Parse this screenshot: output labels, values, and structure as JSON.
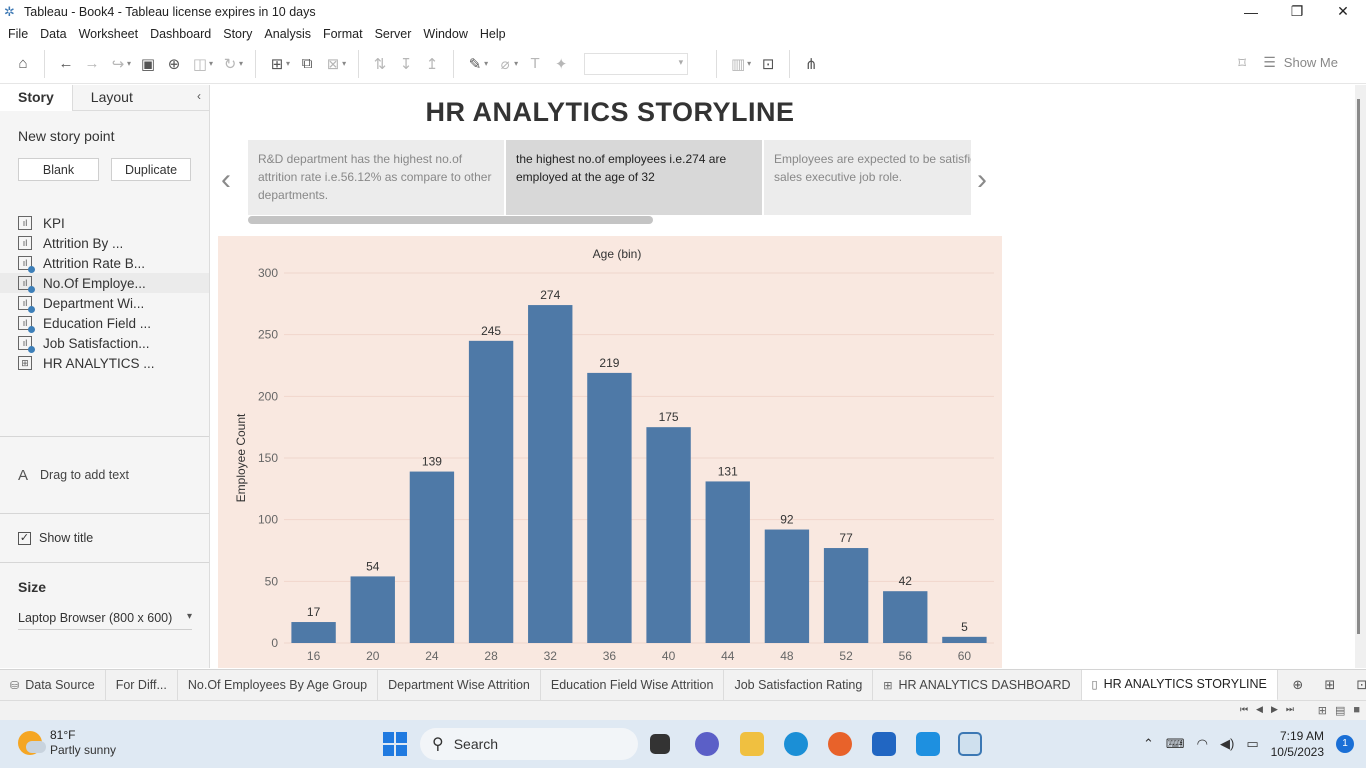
{
  "window": {
    "title": "Tableau - Book4 - Tableau license expires in 10 days"
  },
  "menu": [
    "File",
    "Data",
    "Worksheet",
    "Dashboard",
    "Story",
    "Analysis",
    "Format",
    "Server",
    "Window",
    "Help"
  ],
  "toolbar": {
    "show_me": "Show Me"
  },
  "left_pane": {
    "tabs": [
      "Story",
      "Layout"
    ],
    "new_story_point": "New story point",
    "blank": "Blank",
    "duplicate": "Duplicate",
    "sheets": [
      {
        "label": "KPI",
        "type": "sheet",
        "used": false
      },
      {
        "label": "Attrition By ...",
        "type": "sheet",
        "used": false
      },
      {
        "label": "Attrition Rate B...",
        "type": "sheet",
        "used": true
      },
      {
        "label": "No.Of Employe...",
        "type": "sheet",
        "used": true
      },
      {
        "label": "Department Wi...",
        "type": "sheet",
        "used": true
      },
      {
        "label": "Education Field ...",
        "type": "sheet",
        "used": true
      },
      {
        "label": "Job Satisfaction...",
        "type": "sheet",
        "used": true
      },
      {
        "label": "HR ANALYTICS ...",
        "type": "dashboard",
        "used": false
      }
    ],
    "drag_text": "Drag to add text",
    "show_title": "Show title",
    "size_label": "Size",
    "size_value": "Laptop Browser (800 x 600)"
  },
  "story": {
    "title": "HR ANALYTICS STORYLINE",
    "points": [
      "R&D department has the highest no.of attrition rate i.e.56.12% as compare to other departments.",
      "the highest no.of employees i.e.274 are employed at the age of 32",
      "Employees are expected to be satisfied in sales executive job role."
    ],
    "selected_point": 1
  },
  "chart_data": {
    "type": "bar",
    "title": "Age (bin)",
    "xlabel": "Age (bin)",
    "ylabel": "Employee Count",
    "categories": [
      "16",
      "20",
      "24",
      "28",
      "32",
      "36",
      "40",
      "44",
      "48",
      "52",
      "56",
      "60"
    ],
    "values": [
      17,
      54,
      139,
      245,
      274,
      219,
      175,
      131,
      92,
      77,
      42,
      5
    ],
    "ylim": [
      0,
      300
    ],
    "yticks": [
      0,
      50,
      100,
      150,
      200,
      250,
      300
    ],
    "grid": true,
    "bar_color": "#4e79a7",
    "background": "#f9e8e0"
  },
  "sheet_tabs": [
    {
      "label": "Data Source",
      "icon": "database-icon",
      "active": false
    },
    {
      "label": "For Diff...",
      "icon": "",
      "active": false
    },
    {
      "label": "No.Of Employees By Age Group",
      "icon": "",
      "active": false
    },
    {
      "label": "Department Wise Attrition",
      "icon": "",
      "active": false
    },
    {
      "label": "Education Field Wise Attrition",
      "icon": "",
      "active": false
    },
    {
      "label": "Job Satisfaction Rating",
      "icon": "",
      "active": false
    },
    {
      "label": "HR ANALYTICS DASHBOARD",
      "icon": "dashboard-icon",
      "active": false
    },
    {
      "label": "HR ANALYTICS STORYLINE",
      "icon": "story-icon",
      "active": true
    }
  ],
  "taskbar": {
    "temperature": "81°F",
    "weather": "Partly sunny",
    "search": "Search",
    "time": "7:19 AM",
    "date": "10/5/2023",
    "notifications": "1"
  }
}
